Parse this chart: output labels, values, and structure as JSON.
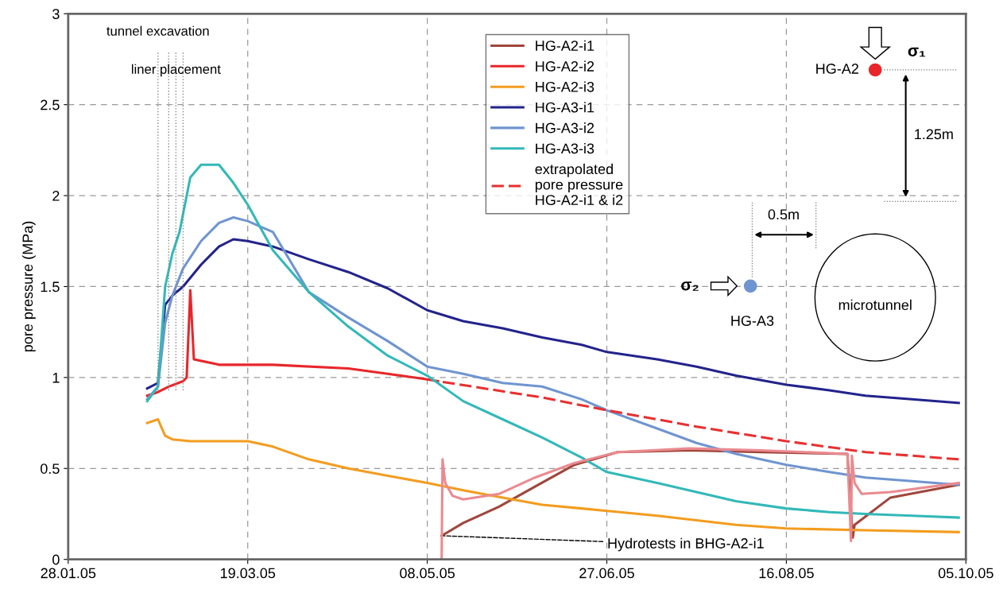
{
  "chart_data": {
    "type": "line",
    "ylabel": "pore pressure (MPa)",
    "xlim": [
      "2005-01-28",
      "2005-10-05"
    ],
    "ylim": [
      0,
      3
    ],
    "xticks": [
      {
        "value": "2005-01-28",
        "label": "28.01.05"
      },
      {
        "value": "2005-03-19",
        "label": "19.03.05"
      },
      {
        "value": "2005-05-08",
        "label": "08.05.05"
      },
      {
        "value": "2005-06-27",
        "label": "27.06.05"
      },
      {
        "value": "2005-08-16",
        "label": "16.08.05"
      },
      {
        "value": "2005-10-05",
        "label": "05.10.05"
      }
    ],
    "yticks": [
      0,
      0.5,
      1,
      1.5,
      2,
      2.5,
      3
    ],
    "grid": true,
    "legend": "top",
    "line_style": "solid",
    "series": [
      {
        "name": "HG-A2-i1",
        "color": "#a0463c",
        "x": [
          "2005-05-12",
          "2005-05-18",
          "2005-05-28",
          "2005-06-07",
          "2005-06-18",
          "2005-06-30",
          "2005-07-20",
          "2005-08-09",
          "2005-09-02",
          "2005-09-03T12:00",
          "2005-09-04",
          "2005-09-14",
          "2005-10-03"
        ],
        "values": [
          0.13,
          0.2,
          0.29,
          0.4,
          0.52,
          0.59,
          0.6,
          0.59,
          0.58,
          0.12,
          0.19,
          0.34,
          0.41
        ]
      },
      {
        "name": "HG-A2-i2",
        "color": "#e8262a",
        "x": [
          "2005-02-19",
          "2005-02-22",
          "2005-02-25",
          "2005-03-01",
          "2005-03-02",
          "2005-03-03",
          "2005-03-04",
          "2005-03-11",
          "2005-03-26",
          "2005-04-16",
          "2005-04-27",
          "2005-05-08",
          "2005-05-11"
        ],
        "values": [
          0.9,
          0.92,
          0.95,
          0.98,
          1.0,
          1.48,
          1.1,
          1.07,
          1.07,
          1.05,
          1.02,
          0.99,
          0.98
        ]
      },
      {
        "name": "HG-A2-i3",
        "color": "#f39c1f",
        "x": [
          "2005-02-19",
          "2005-02-22",
          "2005-02-24",
          "2005-02-26",
          "2005-03-03",
          "2005-03-19",
          "2005-03-26",
          "2005-04-05",
          "2005-04-16",
          "2005-04-27",
          "2005-05-08",
          "2005-05-18",
          "2005-05-29",
          "2005-06-09",
          "2005-06-20",
          "2005-07-11",
          "2005-08-02",
          "2005-08-16",
          "2005-09-07",
          "2005-10-03"
        ],
        "values": [
          0.75,
          0.77,
          0.68,
          0.66,
          0.65,
          0.65,
          0.62,
          0.55,
          0.5,
          0.46,
          0.42,
          0.38,
          0.34,
          0.3,
          0.28,
          0.24,
          0.19,
          0.17,
          0.16,
          0.15
        ]
      },
      {
        "name": "HG-A3-i1",
        "color": "#23238c",
        "x": [
          "2005-02-19",
          "2005-02-22",
          "2005-02-24",
          "2005-02-26",
          "2005-03-01",
          "2005-03-06",
          "2005-03-11",
          "2005-03-15",
          "2005-03-19",
          "2005-03-26",
          "2005-04-05",
          "2005-04-16",
          "2005-04-27",
          "2005-05-08",
          "2005-05-18",
          "2005-05-29",
          "2005-06-09",
          "2005-06-20",
          "2005-06-27",
          "2005-07-11",
          "2005-07-22",
          "2005-08-02",
          "2005-08-16",
          "2005-08-28",
          "2005-09-07",
          "2005-09-20",
          "2005-10-03"
        ],
        "values": [
          0.94,
          0.97,
          1.4,
          1.45,
          1.5,
          1.62,
          1.72,
          1.76,
          1.75,
          1.72,
          1.65,
          1.58,
          1.49,
          1.37,
          1.31,
          1.27,
          1.22,
          1.18,
          1.14,
          1.1,
          1.06,
          1.01,
          0.96,
          0.93,
          0.9,
          0.88,
          0.86
        ]
      },
      {
        "name": "HG-A3-i2",
        "color": "#6f95d0",
        "x": [
          "2005-02-19",
          "2005-02-22",
          "2005-02-24",
          "2005-02-26",
          "2005-03-01",
          "2005-03-06",
          "2005-03-11",
          "2005-03-15",
          "2005-03-19",
          "2005-03-26",
          "2005-04-05",
          "2005-04-16",
          "2005-04-27",
          "2005-05-08",
          "2005-05-18",
          "2005-05-29",
          "2005-06-09",
          "2005-06-20",
          "2005-06-27",
          "2005-07-11",
          "2005-07-22",
          "2005-08-02",
          "2005-08-16",
          "2005-08-28",
          "2005-09-07",
          "2005-09-20",
          "2005-10-03"
        ],
        "values": [
          0.88,
          0.95,
          1.3,
          1.45,
          1.6,
          1.75,
          1.85,
          1.88,
          1.86,
          1.8,
          1.47,
          1.33,
          1.2,
          1.06,
          1.02,
          0.97,
          0.95,
          0.88,
          0.82,
          0.72,
          0.64,
          0.58,
          0.52,
          0.48,
          0.45,
          0.43,
          0.41
        ]
      },
      {
        "name": "HG-A3-i3",
        "color": "#33b8b8",
        "x": [
          "2005-02-19",
          "2005-02-22",
          "2005-02-24",
          "2005-02-26",
          "2005-02-28",
          "2005-03-03",
          "2005-03-06",
          "2005-03-11",
          "2005-03-15",
          "2005-03-19",
          "2005-03-26",
          "2005-04-05",
          "2005-04-16",
          "2005-04-27",
          "2005-05-08",
          "2005-05-18",
          "2005-05-29",
          "2005-06-09",
          "2005-06-20",
          "2005-06-27",
          "2005-07-11",
          "2005-07-22",
          "2005-08-02",
          "2005-08-16",
          "2005-08-28",
          "2005-09-07",
          "2005-09-20",
          "2005-10-03"
        ],
        "values": [
          0.87,
          0.95,
          1.5,
          1.68,
          1.8,
          2.1,
          2.17,
          2.17,
          2.07,
          1.95,
          1.7,
          1.47,
          1.28,
          1.12,
          1.01,
          0.87,
          0.77,
          0.67,
          0.56,
          0.48,
          0.42,
          0.37,
          0.32,
          0.28,
          0.26,
          0.25,
          0.24,
          0.23
        ]
      },
      {
        "name": "extrapolated\npore pressure\nHG-A2-i1 & i2",
        "color": "#e83030",
        "line_style": "dashed",
        "x": [
          "2005-05-11",
          "2005-06-09",
          "2005-06-27",
          "2005-07-22",
          "2005-08-16",
          "2005-09-07",
          "2005-10-03"
        ],
        "values": [
          0.98,
          0.89,
          0.82,
          0.73,
          0.65,
          0.59,
          0.55
        ]
      },
      {
        "color": "#ea8a90",
        "x": [
          "2005-05-12T00:00",
          "2005-05-12T06:00",
          "2005-05-13",
          "2005-05-15",
          "2005-05-18",
          "2005-05-28",
          "2005-06-07",
          "2005-06-18",
          "2005-06-30",
          "2005-07-20",
          "2005-08-09",
          "2005-09-02",
          "2005-09-03T00:00",
          "2005-09-03T06:00",
          "2005-09-04",
          "2005-09-06",
          "2005-09-14",
          "2005-10-03"
        ],
        "values": [
          0.0,
          0.55,
          0.42,
          0.35,
          0.33,
          0.36,
          0.45,
          0.53,
          0.59,
          0.61,
          0.6,
          0.58,
          0.1,
          0.57,
          0.42,
          0.36,
          0.37,
          0.42
        ]
      }
    ],
    "ref_lines": [
      {
        "axis": "x",
        "value": "2005-02-22",
        "label": "tunnel excavation",
        "line_style": "dotted",
        "color": "#888888"
      },
      {
        "axis": "x",
        "value": "2005-02-25",
        "line_style": "dotted",
        "color": "#888888"
      },
      {
        "axis": "x",
        "value": "2005-02-27",
        "label": "liner placement",
        "line_style": "dotted",
        "color": "#888888"
      },
      {
        "axis": "x",
        "value": "2005-03-01",
        "line_style": "dotted",
        "color": "#888888"
      }
    ],
    "annotations": [
      "σ₁",
      "HG-A2",
      "1.25m",
      "0.5m",
      "σ₂",
      "HG-A3",
      "microtunnel",
      {
        "text": "Hydrotests in BHG-A2-i1",
        "x": "2005-05-12",
        "y": 0.13
      }
    ]
  }
}
